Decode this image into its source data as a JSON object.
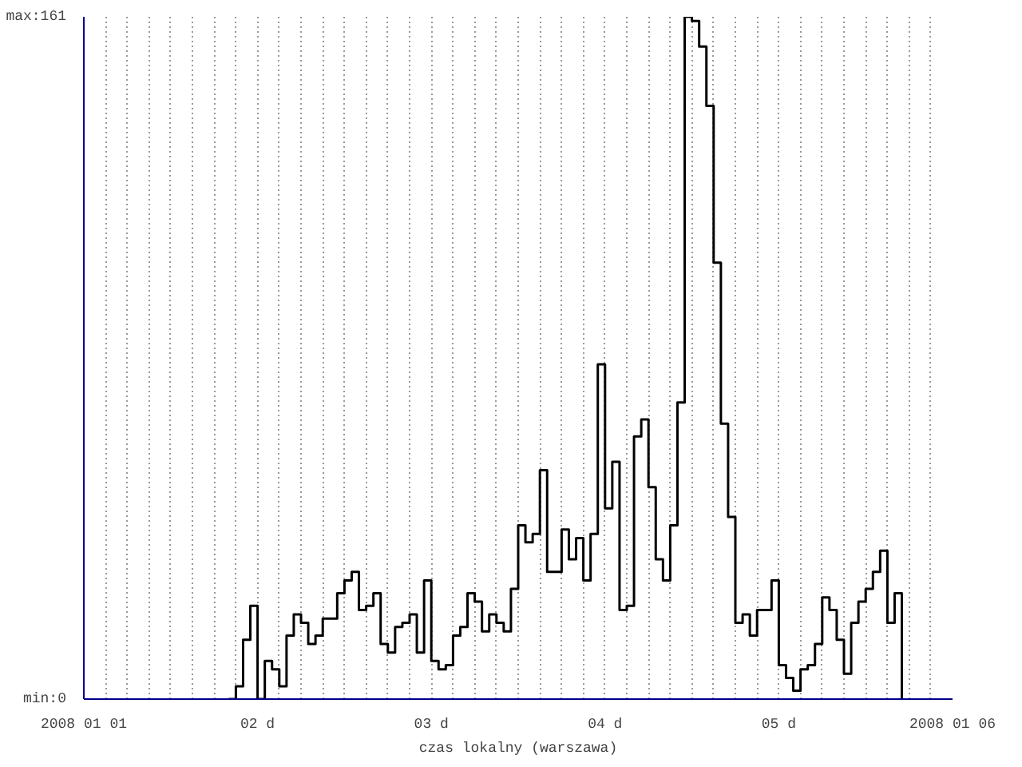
{
  "chart_data": {
    "type": "step",
    "xlabel": "czas lokalny (warszawa)",
    "x": [
      "2008-01-01T20:00",
      "2008-01-01T21:00",
      "2008-01-01T22:00",
      "2008-01-01T23:00",
      "2008-01-02T00:00",
      "2008-01-02T01:00",
      "2008-01-02T02:00",
      "2008-01-02T03:00",
      "2008-01-02T04:00",
      "2008-01-02T05:00",
      "2008-01-02T06:00",
      "2008-01-02T07:00",
      "2008-01-02T08:00",
      "2008-01-02T09:00",
      "2008-01-02T10:00",
      "2008-01-02T11:00",
      "2008-01-02T12:00",
      "2008-01-02T13:00",
      "2008-01-02T14:00",
      "2008-01-02T15:00",
      "2008-01-02T16:00",
      "2008-01-02T17:00",
      "2008-01-02T18:00",
      "2008-01-02T19:00",
      "2008-01-02T20:00",
      "2008-01-02T21:00",
      "2008-01-02T22:00",
      "2008-01-02T23:00",
      "2008-01-03T00:00",
      "2008-01-03T01:00",
      "2008-01-03T02:00",
      "2008-01-03T03:00",
      "2008-01-03T04:00",
      "2008-01-03T05:00",
      "2008-01-03T06:00",
      "2008-01-03T07:00",
      "2008-01-03T08:00",
      "2008-01-03T09:00",
      "2008-01-03T10:00",
      "2008-01-03T11:00",
      "2008-01-03T12:00",
      "2008-01-03T13:00",
      "2008-01-03T14:00",
      "2008-01-03T15:00",
      "2008-01-03T16:00",
      "2008-01-03T17:00",
      "2008-01-03T18:00",
      "2008-01-03T19:00",
      "2008-01-03T20:00",
      "2008-01-03T21:00",
      "2008-01-03T22:00",
      "2008-01-03T23:00",
      "2008-01-04T00:00",
      "2008-01-04T01:00",
      "2008-01-04T02:00",
      "2008-01-04T03:00",
      "2008-01-04T04:00",
      "2008-01-04T05:00",
      "2008-01-04T06:00",
      "2008-01-04T07:00",
      "2008-01-04T08:00",
      "2008-01-04T09:00",
      "2008-01-04T10:00",
      "2008-01-04T11:00",
      "2008-01-04T12:00",
      "2008-01-04T13:00",
      "2008-01-04T14:00",
      "2008-01-04T15:00",
      "2008-01-04T16:00",
      "2008-01-04T17:00",
      "2008-01-04T18:00",
      "2008-01-04T19:00",
      "2008-01-04T20:00",
      "2008-01-04T21:00",
      "2008-01-04T22:00",
      "2008-01-04T23:00",
      "2008-01-05T00:00",
      "2008-01-05T01:00",
      "2008-01-05T02:00",
      "2008-01-05T03:00",
      "2008-01-05T04:00",
      "2008-01-05T05:00",
      "2008-01-05T06:00",
      "2008-01-05T07:00",
      "2008-01-05T08:00",
      "2008-01-05T09:00",
      "2008-01-05T10:00",
      "2008-01-05T11:00",
      "2008-01-05T12:00",
      "2008-01-05T13:00",
      "2008-01-05T14:00",
      "2008-01-05T15:00",
      "2008-01-05T16:00",
      "2008-01-05T17:00"
    ],
    "series": [
      {
        "color": "#000000",
        "values": [
          0,
          3,
          14,
          22,
          0,
          9,
          7,
          3,
          15,
          20,
          18,
          13,
          15,
          19,
          19,
          25,
          28,
          30,
          21,
          22,
          25,
          13,
          11,
          17,
          18,
          20,
          11,
          28,
          9,
          7,
          8,
          15,
          17,
          25,
          23,
          16,
          20,
          18,
          16,
          26,
          41,
          37,
          39,
          54,
          30,
          30,
          40,
          33,
          38,
          28,
          39,
          79,
          45,
          56,
          21,
          22,
          62,
          66,
          50,
          33,
          28,
          41,
          70,
          161,
          160,
          154,
          140,
          103,
          65,
          43,
          18,
          20,
          15,
          21,
          21,
          28,
          8,
          5,
          2,
          7,
          8,
          13,
          24,
          21,
          14,
          6,
          18,
          23,
          26,
          30,
          35,
          18,
          25,
          0
        ]
      }
    ],
    "xlim": [
      "2008-01-01",
      "2008-01-06"
    ],
    "xticks": [
      {
        "value": "2008-01-01",
        "label": "2008 01 01"
      },
      {
        "value": "2008-01-01T03:00",
        "label": null
      },
      {
        "value": "2008-01-01T06:00",
        "label": null
      },
      {
        "value": "2008-01-01T09:00",
        "label": null
      },
      {
        "value": "2008-01-01T12:00",
        "label": null
      },
      {
        "value": "2008-01-01T15:00",
        "label": null
      },
      {
        "value": "2008-01-01T18:00",
        "label": null
      },
      {
        "value": "2008-01-01T21:00",
        "label": null
      },
      {
        "value": "2008-01-02",
        "label": "02 d"
      },
      {
        "value": "2008-01-02T03:00",
        "label": null
      },
      {
        "value": "2008-01-02T06:00",
        "label": null
      },
      {
        "value": "2008-01-02T09:00",
        "label": null
      },
      {
        "value": "2008-01-02T12:00",
        "label": null
      },
      {
        "value": "2008-01-02T15:00",
        "label": null
      },
      {
        "value": "2008-01-02T18:00",
        "label": null
      },
      {
        "value": "2008-01-02T21:00",
        "label": null
      },
      {
        "value": "2008-01-03",
        "label": "03 d"
      },
      {
        "value": "2008-01-03T03:00",
        "label": null
      },
      {
        "value": "2008-01-03T06:00",
        "label": null
      },
      {
        "value": "2008-01-03T09:00",
        "label": null
      },
      {
        "value": "2008-01-03T12:00",
        "label": null
      },
      {
        "value": "2008-01-03T15:00",
        "label": null
      },
      {
        "value": "2008-01-03T18:00",
        "label": null
      },
      {
        "value": "2008-01-03T21:00",
        "label": null
      },
      {
        "value": "2008-01-04",
        "label": "04 d"
      },
      {
        "value": "2008-01-04T03:00",
        "label": null
      },
      {
        "value": "2008-01-04T06:00",
        "label": null
      },
      {
        "value": "2008-01-04T09:00",
        "label": null
      },
      {
        "value": "2008-01-04T12:00",
        "label": null
      },
      {
        "value": "2008-01-04T15:00",
        "label": null
      },
      {
        "value": "2008-01-04T18:00",
        "label": null
      },
      {
        "value": "2008-01-04T21:00",
        "label": null
      },
      {
        "value": "2008-01-05",
        "label": "05 d"
      },
      {
        "value": "2008-01-05T03:00",
        "label": null
      },
      {
        "value": "2008-01-05T06:00",
        "label": null
      },
      {
        "value": "2008-01-05T09:00",
        "label": null
      },
      {
        "value": "2008-01-05T12:00",
        "label": null
      },
      {
        "value": "2008-01-05T15:00",
        "label": null
      },
      {
        "value": "2008-01-05T18:00",
        "label": null
      },
      {
        "value": "2008-01-05T21:00",
        "label": null
      },
      {
        "value": "2008-01-06",
        "label": "2008 01 06"
      }
    ],
    "ylim": [
      0,
      161
    ],
    "yticks": [
      {
        "value": 0,
        "label": "min:0"
      },
      {
        "value": 161,
        "label": "max:161"
      }
    ],
    "grid": "x",
    "line_style": "solid"
  }
}
